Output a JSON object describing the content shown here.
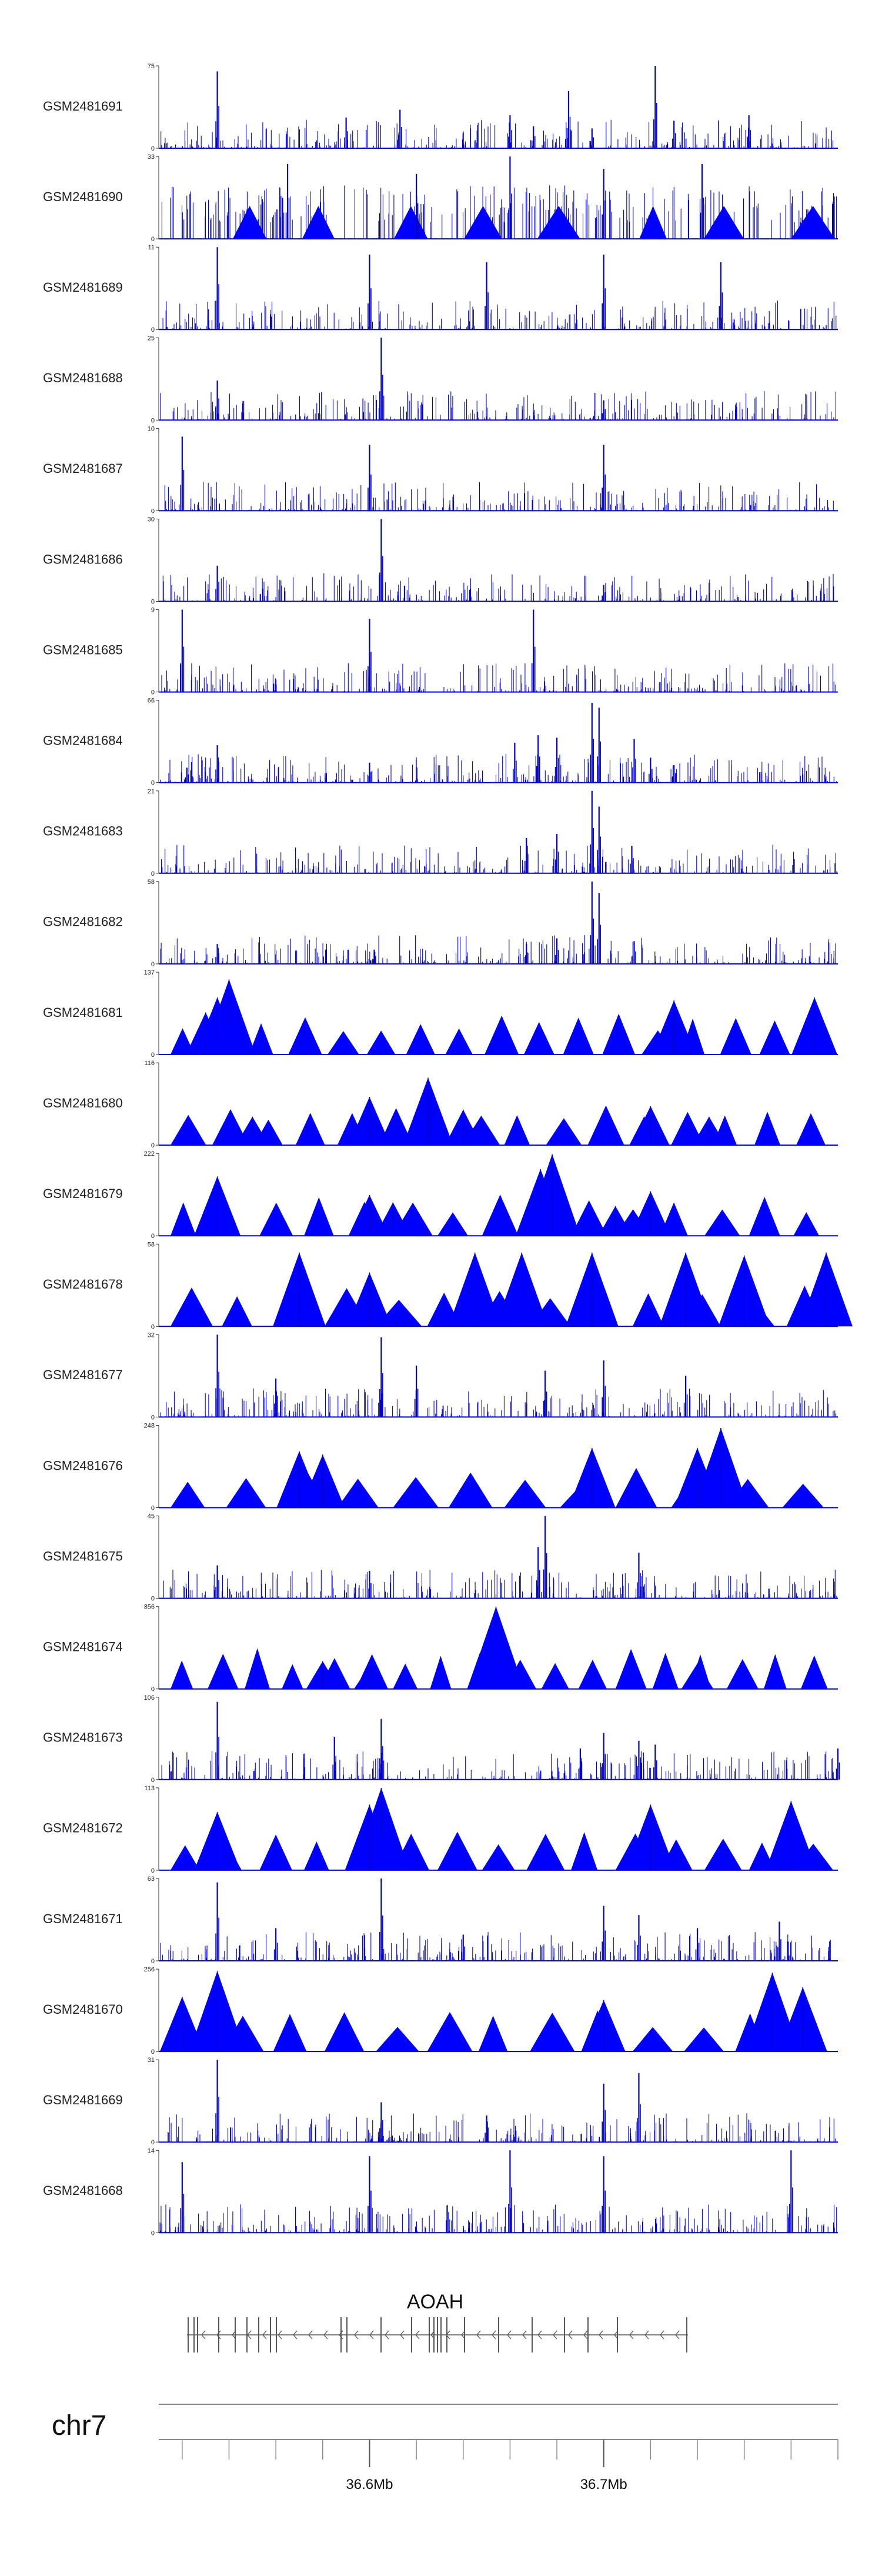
{
  "chart_data": {
    "type": "area",
    "title": "",
    "genome_region": {
      "chromosome": "chr7",
      "gene": "AOAH",
      "xlim_mb": [
        36.51,
        36.8
      ],
      "ticks_mb": [
        36.6,
        36.7
      ],
      "tick_labels": [
        "36.6Mb",
        "36.7Mb"
      ]
    },
    "color": "#0000cc",
    "triangle_color": "#0000ff",
    "series": [
      {
        "name": "GSM2481691",
        "ymax": 75,
        "style": "dense",
        "peaks": [
          [
            36.535,
            70
          ],
          [
            36.59,
            28
          ],
          [
            36.613,
            35
          ],
          [
            36.66,
            30
          ],
          [
            36.67,
            20
          ],
          [
            36.685,
            52
          ],
          [
            36.695,
            18
          ],
          [
            36.722,
            75
          ],
          [
            36.73,
            25
          ],
          [
            36.762,
            30
          ]
        ]
      },
      {
        "name": "GSM2481690",
        "ymax": 33,
        "style": "sparse",
        "peaks": [
          [
            36.66,
            33
          ],
          [
            36.565,
            30
          ],
          [
            36.7,
            28
          ],
          [
            36.62,
            26
          ],
          [
            36.742,
            30
          ]
        ]
      },
      {
        "name": "GSM2481689",
        "ymax": 11,
        "style": "dense",
        "peaks": [
          [
            36.535,
            11
          ],
          [
            36.6,
            10
          ],
          [
            36.65,
            9
          ],
          [
            36.7,
            10
          ],
          [
            36.75,
            9
          ]
        ]
      },
      {
        "name": "GSM2481688",
        "ymax": 25,
        "style": "dense",
        "peaks": [
          [
            36.535,
            12
          ],
          [
            36.605,
            25
          ],
          [
            36.7,
            6
          ]
        ]
      },
      {
        "name": "GSM2481687",
        "ymax": 10,
        "style": "dense",
        "peaks": [
          [
            36.52,
            9
          ],
          [
            36.6,
            8
          ],
          [
            36.7,
            8
          ]
        ]
      },
      {
        "name": "GSM2481686",
        "ymax": 30,
        "style": "dense",
        "peaks": [
          [
            36.535,
            13
          ],
          [
            36.605,
            30
          ],
          [
            36.7,
            6
          ]
        ]
      },
      {
        "name": "GSM2481685",
        "ymax": 9,
        "style": "dense",
        "peaks": [
          [
            36.52,
            9
          ],
          [
            36.6,
            8
          ],
          [
            36.67,
            9
          ]
        ]
      },
      {
        "name": "GSM2481684",
        "ymax": 66,
        "style": "dense",
        "peaks": [
          [
            36.535,
            30
          ],
          [
            36.522,
            12
          ],
          [
            36.6,
            16
          ],
          [
            36.662,
            32
          ],
          [
            36.672,
            38
          ],
          [
            36.68,
            36
          ],
          [
            36.695,
            64
          ],
          [
            36.698,
            60
          ],
          [
            36.713,
            35
          ],
          [
            36.72,
            20
          ],
          [
            36.73,
            14
          ]
        ]
      },
      {
        "name": "GSM2481683",
        "ymax": 21,
        "style": "dense",
        "peaks": [
          [
            36.667,
            9
          ],
          [
            36.68,
            10
          ],
          [
            36.695,
            21
          ],
          [
            36.698,
            17
          ],
          [
            36.712,
            7
          ]
        ]
      },
      {
        "name": "GSM2481682",
        "ymax": 58,
        "style": "dense",
        "peaks": [
          [
            36.535,
            14
          ],
          [
            36.602,
            10
          ],
          [
            36.667,
            14
          ],
          [
            36.68,
            18
          ],
          [
            36.695,
            58
          ],
          [
            36.698,
            50
          ],
          [
            36.713,
            16
          ]
        ]
      },
      {
        "name": "GSM2481681",
        "ymax": 137,
        "style": "triangles",
        "peaks": [
          [
            36.54,
            125
          ],
          [
            36.535,
            95
          ],
          [
            36.53,
            70
          ],
          [
            36.79,
            95
          ],
          [
            36.73,
            90
          ]
        ]
      },
      {
        "name": "GSM2481680",
        "ymax": 116,
        "style": "triangles",
        "peaks": [
          [
            36.6,
            68
          ],
          [
            36.625,
            95
          ],
          [
            36.55,
            40
          ],
          [
            36.64,
            50
          ],
          [
            36.72,
            55
          ],
          [
            36.745,
            40
          ]
        ]
      },
      {
        "name": "GSM2481679",
        "ymax": 222,
        "style": "triangles",
        "peaks": [
          [
            36.535,
            160
          ],
          [
            36.6,
            110
          ],
          [
            36.673,
            180
          ],
          [
            36.678,
            220
          ],
          [
            36.705,
            80
          ],
          [
            36.72,
            120
          ],
          [
            36.61,
            90
          ]
        ]
      },
      {
        "name": "GSM2481678",
        "ymax": 58,
        "style": "triangles",
        "peaks": [
          [
            36.57,
            52
          ],
          [
            36.6,
            38
          ],
          [
            36.645,
            52
          ],
          [
            36.665,
            52
          ],
          [
            36.695,
            52
          ],
          [
            36.735,
            52
          ],
          [
            36.795,
            52
          ],
          [
            36.76,
            50
          ]
        ]
      },
      {
        "name": "GSM2481677",
        "ymax": 32,
        "style": "dense",
        "peaks": [
          [
            36.535,
            32
          ],
          [
            36.605,
            31
          ],
          [
            36.56,
            15
          ],
          [
            36.62,
            20
          ],
          [
            36.675,
            18
          ],
          [
            36.7,
            22
          ],
          [
            36.735,
            16
          ]
        ]
      },
      {
        "name": "GSM2481676",
        "ymax": 248,
        "style": "triangles",
        "peaks": [
          [
            36.695,
            180
          ],
          [
            36.75,
            240
          ],
          [
            36.74,
            180
          ],
          [
            36.57,
            170
          ],
          [
            36.58,
            160
          ]
        ]
      },
      {
        "name": "GSM2481675",
        "ymax": 45,
        "style": "dense",
        "peaks": [
          [
            36.675,
            45
          ],
          [
            36.672,
            28
          ],
          [
            36.715,
            25
          ],
          [
            36.535,
            18
          ],
          [
            36.6,
            15
          ]
        ]
      },
      {
        "name": "GSM2481674",
        "ymax": 356,
        "style": "triangles",
        "peaks": [
          [
            36.654,
            356
          ],
          [
            36.652,
            270
          ],
          [
            36.58,
            120
          ],
          [
            36.74,
            110
          ],
          [
            36.6,
            100
          ]
        ]
      },
      {
        "name": "GSM2481673",
        "ymax": 106,
        "style": "dense",
        "peaks": [
          [
            36.535,
            100
          ],
          [
            36.605,
            78
          ],
          [
            36.585,
            55
          ],
          [
            36.69,
            40
          ],
          [
            36.7,
            60
          ],
          [
            36.715,
            50
          ],
          [
            36.722,
            45
          ],
          [
            36.8,
            40
          ]
        ]
      },
      {
        "name": "GSM2481672",
        "ymax": 113,
        "style": "triangles",
        "peaks": [
          [
            36.605,
            113
          ],
          [
            36.6,
            90
          ],
          [
            36.535,
            80
          ],
          [
            36.78,
            95
          ],
          [
            36.72,
            90
          ]
        ]
      },
      {
        "name": "GSM2481671",
        "ymax": 63,
        "style": "dense",
        "peaks": [
          [
            36.535,
            60
          ],
          [
            36.605,
            63
          ],
          [
            36.56,
            25
          ],
          [
            36.64,
            20
          ],
          [
            36.7,
            42
          ],
          [
            36.715,
            35
          ],
          [
            36.74,
            25
          ],
          [
            36.775,
            30
          ]
        ]
      },
      {
        "name": "GSM2481670",
        "ymax": 256,
        "style": "triangles",
        "peaks": [
          [
            36.535,
            250
          ],
          [
            36.52,
            170
          ],
          [
            36.772,
            245
          ],
          [
            36.785,
            200
          ],
          [
            36.7,
            160
          ]
        ]
      },
      {
        "name": "GSM2481669",
        "ymax": 31,
        "style": "dense",
        "peaks": [
          [
            36.535,
            31
          ],
          [
            36.605,
            15
          ],
          [
            36.7,
            22
          ],
          [
            36.715,
            26
          ],
          [
            36.65,
            10
          ]
        ]
      },
      {
        "name": "GSM2481668",
        "ymax": 14,
        "style": "dense",
        "peaks": [
          [
            36.52,
            12
          ],
          [
            36.6,
            13
          ],
          [
            36.66,
            14
          ],
          [
            36.7,
            13
          ],
          [
            36.78,
            14
          ]
        ]
      }
    ]
  }
}
